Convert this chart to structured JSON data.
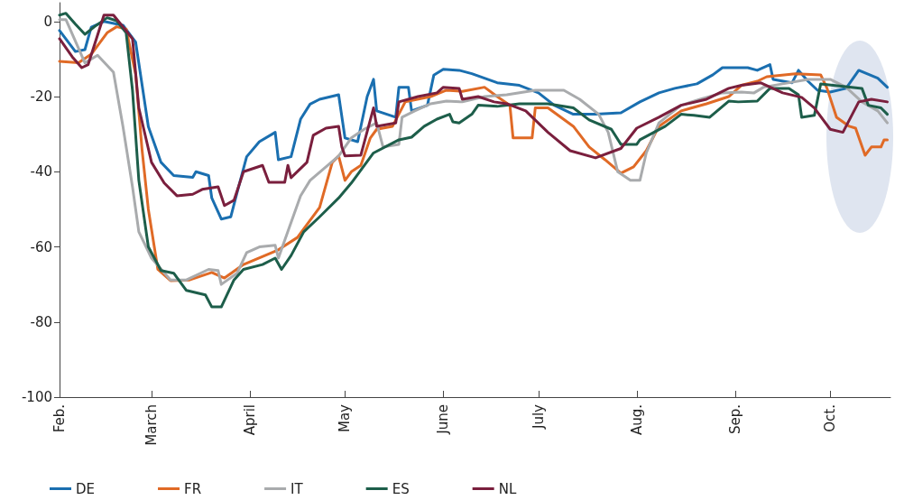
{
  "chart_data": {
    "type": "line",
    "xlim": [
      "--02-01",
      "--10-20"
    ],
    "ylim": [
      -100,
      5
    ],
    "xticks": [
      {
        "value": "--02-01",
        "label": "Feb."
      },
      {
        "value": "--03-01",
        "label": "March"
      },
      {
        "value": "--04-01",
        "label": "April"
      },
      {
        "value": "--05-01",
        "label": "May"
      },
      {
        "value": "--06-01",
        "label": "June"
      },
      {
        "value": "--07-01",
        "label": "July"
      },
      {
        "value": "--08-01",
        "label": "Aug."
      },
      {
        "value": "--09-01",
        "label": "Sep."
      },
      {
        "value": "--10-01",
        "label": "Oct."
      }
    ],
    "yticks": [
      -100,
      -80,
      -60,
      -40,
      -20,
      0
    ],
    "grid": false,
    "legend": "bottom left",
    "marker": "none",
    "line_style": "solid",
    "series": [
      {
        "name": "DE",
        "color": "#1a6fb0",
        "x": [
          "--02-01",
          "--02-06",
          "--02-09",
          "--02-11",
          "--02-15",
          "--02-21",
          "--02-25",
          "--02-29",
          "--03-04",
          "--03-08",
          "--03-14",
          "--03-15",
          "--03-19",
          "--03-20",
          "--03-23",
          "--03-26",
          "--03-28",
          "--03-31",
          "--04-04",
          "--04-09",
          "--04-10",
          "--04-14",
          "--04-17",
          "--04-20",
          "--04-23",
          "--04-29",
          "--05-01",
          "--05-05",
          "--05-08",
          "--05-10",
          "--05-11",
          "--05-17",
          "--05-18",
          "--05-21",
          "--05-22",
          "--05-27",
          "--05-29",
          "--06-01",
          "--06-06",
          "--06-10",
          "--06-18",
          "--06-25",
          "--07-01",
          "--07-06",
          "--07-12",
          "--07-19",
          "--07-27",
          "--08-02",
          "--08-08",
          "--08-13",
          "--08-20",
          "--08-25",
          "--08-28",
          "--09-05",
          "--09-08",
          "--09-12",
          "--09-13",
          "--09-19",
          "--09-21",
          "--09-24",
          "--09-27",
          "--10-01",
          "--10-06",
          "--10-10",
          "--10-16",
          "--10-19"
        ],
        "values": [
          -2.4,
          -8,
          -7.5,
          -1.5,
          0,
          -1,
          -5.5,
          -28,
          -37.5,
          -41,
          -41.5,
          -40,
          -41,
          -47,
          -52.6,
          -52,
          -45.5,
          -36,
          -32,
          -29.5,
          -36.8,
          -36,
          -26,
          -22,
          -20.7,
          -19.5,
          -31,
          -32,
          -20,
          -15.4,
          -23.8,
          -25.5,
          -17.5,
          -17.5,
          -23.8,
          -22.3,
          -14.3,
          -12.7,
          -13,
          -13.9,
          -16.3,
          -17,
          -19,
          -22.3,
          -24.7,
          -24.7,
          -24.3,
          -21.4,
          -19,
          -17.8,
          -16.6,
          -14.2,
          -12.3,
          -12.3,
          -13,
          -11.5,
          -15.4,
          -16.3,
          -13,
          -15.9,
          -18.3,
          -18.8,
          -17.8,
          -13,
          -15.1,
          -17.5
        ]
      },
      {
        "name": "FR",
        "color": "#e06a26",
        "x": [
          "--02-01",
          "--02-07",
          "--02-11",
          "--02-16",
          "--02-19",
          "--02-22",
          "--02-25",
          "--02-27",
          "--02-29",
          "--03-03",
          "--03-07",
          "--03-13",
          "--03-20",
          "--03-24",
          "--03-30",
          "--04-10",
          "--04-16",
          "--04-23",
          "--04-27",
          "--04-29",
          "--05-01",
          "--05-03",
          "--05-06",
          "--05-09",
          "--05-11",
          "--05-16",
          "--05-20",
          "--05-28",
          "--06-02",
          "--06-07",
          "--06-14",
          "--06-18",
          "--06-22",
          "--06-23",
          "--06-29",
          "--06-30",
          "--07-04",
          "--07-12",
          "--07-17",
          "--07-22",
          "--07-27",
          "--07-31",
          "--08-04",
          "--08-08",
          "--08-15",
          "--08-23",
          "--08-30",
          "--09-03",
          "--09-08",
          "--09-11",
          "--09-20",
          "--09-28",
          "--09-30",
          "--10-03",
          "--10-07",
          "--10-09",
          "--10-12",
          "--10-14",
          "--10-17",
          "--10-18",
          "--10-19"
        ],
        "values": [
          -10.6,
          -11,
          -8.7,
          -3,
          -1.4,
          -2,
          -14,
          -34,
          -50,
          -66,
          -69,
          -68.8,
          -66.8,
          -68.3,
          -64.7,
          -60.8,
          -57.5,
          -49.5,
          -37.5,
          -35.8,
          -42.3,
          -40,
          -38.3,
          -31,
          -28.7,
          -27.9,
          -21.4,
          -20,
          -18.3,
          -18.6,
          -17.5,
          -20,
          -22.3,
          -31,
          -31,
          -23,
          -23,
          -27.9,
          -33.4,
          -36.8,
          -40.4,
          -38.7,
          -34.4,
          -27.9,
          -23.8,
          -21.9,
          -20,
          -17,
          -15.9,
          -14.7,
          -13.9,
          -14.2,
          -17.8,
          -25.5,
          -27.9,
          -28.4,
          -35.6,
          -33.4,
          -33.4,
          -31.5,
          -31.5
        ]
      },
      {
        "name": "IT",
        "color": "#a9abad",
        "x": [
          "--02-01",
          "--02-03",
          "--02-09",
          "--02-13",
          "--02-18",
          "--02-21",
          "--02-24",
          "--02-26",
          "--03-01",
          "--03-07",
          "--03-12",
          "--03-19",
          "--03-22",
          "--03-23",
          "--03-28",
          "--03-31",
          "--04-04",
          "--04-09",
          "--04-10",
          "--04-17",
          "--04-20",
          "--04-24",
          "--04-29",
          "--05-03",
          "--05-07",
          "--05-11",
          "--05-13",
          "--05-18",
          "--05-19",
          "--05-23",
          "--05-28",
          "--06-02",
          "--06-07",
          "--06-14",
          "--06-21",
          "--06-30",
          "--07-09",
          "--07-14",
          "--07-20",
          "--07-23",
          "--07-26",
          "--07-30",
          "--08-02",
          "--08-04",
          "--08-08",
          "--08-15",
          "--08-21",
          "--08-28",
          "--09-03",
          "--09-07",
          "--09-10",
          "--09-16",
          "--09-24",
          "--10-01",
          "--10-06",
          "--10-11",
          "--10-16",
          "--10-19"
        ],
        "values": [
          0.5,
          0.5,
          -11,
          -9,
          -13.5,
          -28,
          -44,
          -56,
          -63,
          -68.8,
          -68.8,
          -66,
          -66.3,
          -70,
          -67,
          -61.5,
          -60,
          -59.6,
          -63,
          -46.4,
          -42.3,
          -39.4,
          -35.8,
          -31,
          -28.7,
          -27,
          -33.4,
          -32.7,
          -25.5,
          -23.8,
          -21.9,
          -21.2,
          -21.4,
          -20,
          -19.5,
          -18.3,
          -18.3,
          -20.7,
          -24.7,
          -29.5,
          -40,
          -42.3,
          -42.3,
          -35,
          -27,
          -22.3,
          -20.7,
          -19,
          -18.8,
          -19,
          -17.5,
          -16.6,
          -15.4,
          -15.4,
          -17.5,
          -21.4,
          -23.8,
          -27
        ]
      },
      {
        "name": "ES",
        "color": "#1d5e4a",
        "x": [
          "--02-01",
          "--02-03",
          "--02-06",
          "--02-09",
          "--02-12",
          "--02-16",
          "--02-19",
          "--02-22",
          "--02-24",
          "--02-26",
          "--02-29",
          "--03-04",
          "--03-08",
          "--03-12",
          "--03-18",
          "--03-20",
          "--03-23",
          "--03-27",
          "--03-30",
          "--04-05",
          "--04-09",
          "--04-11",
          "--04-14",
          "--04-18",
          "--04-23",
          "--04-29",
          "--05-03",
          "--05-10",
          "--05-18",
          "--05-22",
          "--05-26",
          "--05-30",
          "--06-03",
          "--06-04",
          "--06-06",
          "--06-10",
          "--06-12",
          "--06-18",
          "--06-25",
          "--07-04",
          "--07-12",
          "--07-17",
          "--07-24",
          "--07-27",
          "--08-01",
          "--08-02",
          "--08-10",
          "--08-15",
          "--08-19",
          "--08-24",
          "--08-30",
          "--09-02",
          "--09-08",
          "--09-12",
          "--09-18",
          "--09-21",
          "--09-22",
          "--09-26",
          "--09-28",
          "--10-11",
          "--10-13",
          "--10-17",
          "--10-19"
        ],
        "values": [
          1.7,
          2.2,
          -0.7,
          -3.4,
          -1.4,
          1,
          0.2,
          -3,
          -18.3,
          -42.3,
          -60,
          -66.3,
          -67,
          -71.6,
          -72.8,
          -76,
          -76,
          -68.8,
          -66,
          -64.7,
          -63,
          -66,
          -62.3,
          -56,
          -52,
          -47,
          -43,
          -35,
          -31.5,
          -30.8,
          -27.9,
          -26,
          -24.7,
          -26.7,
          -27,
          -24.7,
          -22.3,
          -22.6,
          -21.9,
          -21.9,
          -23,
          -26.2,
          -28.7,
          -32.7,
          -32.7,
          -31.5,
          -27.9,
          -24.7,
          -25,
          -25.5,
          -21.2,
          -21.4,
          -21.2,
          -17.8,
          -17.8,
          -19.5,
          -25.5,
          -25,
          -16.6,
          -17.8,
          -22.3,
          -23,
          -24.7
        ]
      },
      {
        "name": "NL",
        "color": "#7a1f3d",
        "x": [
          "--02-01",
          "--02-05",
          "--02-08",
          "--02-10",
          "--02-15",
          "--02-18",
          "--02-21",
          "--02-24",
          "--02-26",
          "--03-01",
          "--03-05",
          "--03-09",
          "--03-14",
          "--03-17",
          "--03-22",
          "--03-24",
          "--03-27",
          "--03-30",
          "--04-05",
          "--04-07",
          "--04-12",
          "--04-13",
          "--04-14",
          "--04-19",
          "--04-21",
          "--04-25",
          "--04-29",
          "--04-30",
          "--05-01",
          "--05-06",
          "--05-10",
          "--05-11",
          "--05-17",
          "--05-18",
          "--05-24",
          "--05-30",
          "--06-01",
          "--06-06",
          "--06-07",
          "--06-12",
          "--06-17",
          "--06-21",
          "--06-27",
          "--07-04",
          "--07-11",
          "--07-19",
          "--07-27",
          "--08-01",
          "--08-08",
          "--08-15",
          "--08-23",
          "--08-30",
          "--09-03",
          "--09-09",
          "--09-16",
          "--09-22",
          "--09-26",
          "--10-01",
          "--10-05",
          "--10-10",
          "--10-14",
          "--10-19"
        ],
        "values": [
          -4.6,
          -9.4,
          -12.3,
          -11.5,
          1.7,
          1.7,
          -1.4,
          -4.6,
          -23,
          -37.5,
          -43,
          -46.4,
          -46,
          -44.7,
          -44,
          -49,
          -47.6,
          -40,
          -38.3,
          -42.8,
          -42.8,
          -38.3,
          -41.6,
          -37.5,
          -30.3,
          -28.4,
          -27.9,
          -33.4,
          -35.8,
          -35.6,
          -23,
          -27.9,
          -27,
          -21.4,
          -20,
          -19,
          -17.5,
          -17.8,
          -20.7,
          -20,
          -21.4,
          -21.9,
          -23.8,
          -29.5,
          -34.4,
          -36.3,
          -33.8,
          -28.4,
          -25.5,
          -22.3,
          -20.7,
          -17.8,
          -17,
          -16.3,
          -19,
          -20.2,
          -23,
          -28.7,
          -29.5,
          -21.4,
          -20.7,
          -21.4
        ]
      }
    ]
  }
}
